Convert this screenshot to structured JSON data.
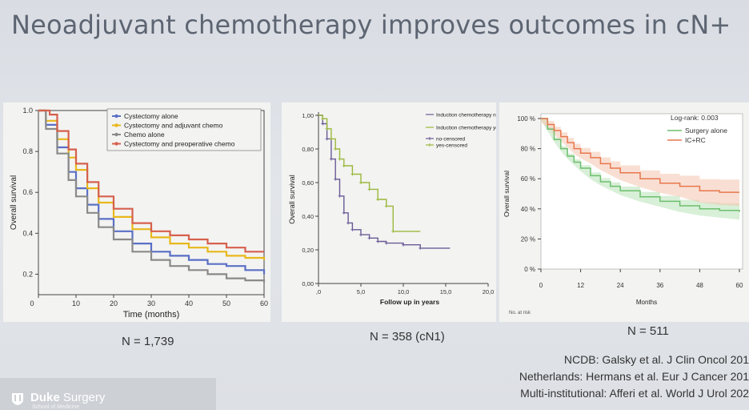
{
  "slide": {
    "title": "Neoadjuvant chemotherapy improves outcomes in cN+",
    "n_labels": [
      "N = 1,739",
      "N = 358 (cN1)",
      "N = 511"
    ],
    "citations": [
      "NCDB:  Galsky et al. J Clin Oncol 201",
      "Netherlands:  Hermans et al. Eur J Cancer 201",
      "Multi-institutional: Afferi et al. World J Urol 202"
    ],
    "logo": {
      "brand": "Duke",
      "dept": "Surgery",
      "sub": "School of Medicine"
    },
    "partial_label_below_chart3": "No. at risk"
  },
  "chart_data": [
    {
      "type": "line",
      "ylabel": "Overall survival",
      "xlabel": "Time (months)",
      "xlim": [
        0,
        60
      ],
      "ylim": [
        0.1,
        1.0
      ],
      "x_ticks": [
        0,
        10,
        20,
        30,
        40,
        50,
        60
      ],
      "y_ticks": [
        0.2,
        0.4,
        0.6,
        0.8,
        1.0
      ],
      "y_tick_labels": [
        "0.2",
        "0.4",
        "0.6",
        "0.8",
        "1.0"
      ],
      "legend_position": "top-right",
      "series": [
        {
          "name": "Cystectomy alone",
          "color": "#5a6fc6",
          "points": [
            [
              0,
              1.0
            ],
            [
              2,
              0.93
            ],
            [
              5,
              0.82
            ],
            [
              8,
              0.7
            ],
            [
              10,
              0.62
            ],
            [
              13,
              0.54
            ],
            [
              16,
              0.47
            ],
            [
              20,
              0.41
            ],
            [
              25,
              0.35
            ],
            [
              30,
              0.31
            ],
            [
              35,
              0.29
            ],
            [
              40,
              0.27
            ],
            [
              45,
              0.25
            ],
            [
              50,
              0.24
            ],
            [
              55,
              0.22
            ],
            [
              60,
              0.2
            ]
          ]
        },
        {
          "name": "Cystectomy and adjuvant chemo",
          "color": "#e8b81a",
          "points": [
            [
              0,
              1.0
            ],
            [
              2,
              0.95
            ],
            [
              5,
              0.86
            ],
            [
              8,
              0.77
            ],
            [
              10,
              0.71
            ],
            [
              13,
              0.62
            ],
            [
              16,
              0.55
            ],
            [
              20,
              0.48
            ],
            [
              25,
              0.42
            ],
            [
              30,
              0.38
            ],
            [
              35,
              0.35
            ],
            [
              40,
              0.33
            ],
            [
              45,
              0.31
            ],
            [
              50,
              0.29
            ],
            [
              55,
              0.28
            ],
            [
              60,
              0.27
            ]
          ]
        },
        {
          "name": "Chemo alone",
          "color": "#8a8a8a",
          "points": [
            [
              0,
              1.0
            ],
            [
              2,
              0.91
            ],
            [
              5,
              0.79
            ],
            [
              8,
              0.66
            ],
            [
              10,
              0.58
            ],
            [
              13,
              0.5
            ],
            [
              16,
              0.43
            ],
            [
              20,
              0.37
            ],
            [
              25,
              0.31
            ],
            [
              30,
              0.27
            ],
            [
              35,
              0.24
            ],
            [
              40,
              0.22
            ],
            [
              45,
              0.2
            ],
            [
              50,
              0.18
            ],
            [
              55,
              0.17
            ],
            [
              60,
              0.16
            ]
          ]
        },
        {
          "name": "Cystectomy and preoperative chemo",
          "color": "#d6604d",
          "points": [
            [
              0,
              1.0
            ],
            [
              3,
              0.98
            ],
            [
              5,
              0.9
            ],
            [
              8,
              0.81
            ],
            [
              10,
              0.74
            ],
            [
              13,
              0.65
            ],
            [
              16,
              0.58
            ],
            [
              20,
              0.52
            ],
            [
              25,
              0.45
            ],
            [
              30,
              0.41
            ],
            [
              35,
              0.39
            ],
            [
              40,
              0.37
            ],
            [
              45,
              0.35
            ],
            [
              50,
              0.33
            ],
            [
              55,
              0.31
            ],
            [
              60,
              0.31
            ]
          ]
        }
      ]
    },
    {
      "type": "line",
      "ylabel": "Overall survival",
      "xlabel": "Follow up in years",
      "xlim": [
        0,
        20
      ],
      "ylim": [
        0,
        1.0
      ],
      "x_ticks": [
        0,
        5,
        10,
        15,
        20
      ],
      "x_tick_labels": [
        ",0",
        "5,0",
        "10,0",
        "15,0",
        "20,0"
      ],
      "y_ticks": [
        0,
        0.2,
        0.4,
        0.6,
        0.8,
        1.0
      ],
      "y_tick_labels": [
        "0,00",
        "0,20",
        "0,40",
        "0,60",
        "0,80",
        "1,00"
      ],
      "legend_position": "top-right",
      "legend": [
        "Induction chemotherapy no",
        "Induction chemotherapy yes",
        "no-censored",
        "yes-censored"
      ],
      "series": [
        {
          "name": "Induction chemotherapy no",
          "color": "#6a5a98",
          "points": [
            [
              0,
              1.0
            ],
            [
              0.5,
              0.95
            ],
            [
              1,
              0.86
            ],
            [
              1.5,
              0.74
            ],
            [
              2,
              0.62
            ],
            [
              2.5,
              0.52
            ],
            [
              3,
              0.42
            ],
            [
              3.5,
              0.36
            ],
            [
              4,
              0.32
            ],
            [
              5,
              0.29
            ],
            [
              6,
              0.27
            ],
            [
              7,
              0.25
            ],
            [
              8,
              0.24
            ],
            [
              10,
              0.23
            ],
            [
              12,
              0.21
            ],
            [
              15.5,
              0.21
            ]
          ]
        },
        {
          "name": "Induction chemotherapy yes",
          "color": "#9ab83c",
          "points": [
            [
              0,
              1.0
            ],
            [
              0.5,
              0.98
            ],
            [
              1,
              0.92
            ],
            [
              1.5,
              0.86
            ],
            [
              2,
              0.8
            ],
            [
              2.5,
              0.74
            ],
            [
              3,
              0.7
            ],
            [
              4,
              0.65
            ],
            [
              5,
              0.6
            ],
            [
              6,
              0.56
            ],
            [
              7,
              0.5
            ],
            [
              8,
              0.46
            ],
            [
              8.8,
              0.31
            ],
            [
              12,
              0.31
            ]
          ]
        }
      ]
    },
    {
      "type": "line",
      "ylabel": "Overall survival",
      "xlabel": "Months",
      "xlim": [
        0,
        60
      ],
      "ylim": [
        0,
        100
      ],
      "x_ticks": [
        0,
        12,
        24,
        36,
        48,
        60
      ],
      "y_ticks": [
        0,
        20,
        40,
        60,
        80,
        100
      ],
      "y_tick_labels": [
        "0 %",
        "20 %",
        "40 %",
        "60 %",
        "80 %",
        "100 %"
      ],
      "annotation": "Log-rank: 0.003",
      "legend_position": "top-right",
      "series": [
        {
          "name": "Surgery alone",
          "color": "#6dbf6d",
          "band_color": "#b8e2b8",
          "points": [
            [
              0,
              100
            ],
            [
              2,
              93
            ],
            [
              4,
              86
            ],
            [
              6,
              80
            ],
            [
              8,
              75
            ],
            [
              10,
              71
            ],
            [
              12,
              67
            ],
            [
              15,
              62
            ],
            [
              18,
              58
            ],
            [
              21,
              55
            ],
            [
              24,
              52
            ],
            [
              30,
              48
            ],
            [
              36,
              45
            ],
            [
              42,
              42
            ],
            [
              48,
              40
            ],
            [
              54,
              39
            ],
            [
              60,
              38
            ]
          ],
          "ci_half_width": 4
        },
        {
          "name": "IC+RC",
          "color": "#e8774d",
          "band_color": "#f4c4ae",
          "points": [
            [
              0,
              100
            ],
            [
              2,
              96
            ],
            [
              4,
              92
            ],
            [
              6,
              88
            ],
            [
              8,
              84
            ],
            [
              10,
              80
            ],
            [
              12,
              77
            ],
            [
              15,
              74
            ],
            [
              18,
              70
            ],
            [
              21,
              67
            ],
            [
              24,
              64
            ],
            [
              30,
              60
            ],
            [
              36,
              57
            ],
            [
              42,
              55
            ],
            [
              48,
              52
            ],
            [
              54,
              51
            ],
            [
              60,
              51
            ]
          ],
          "ci_half_width": 7
        }
      ]
    }
  ]
}
